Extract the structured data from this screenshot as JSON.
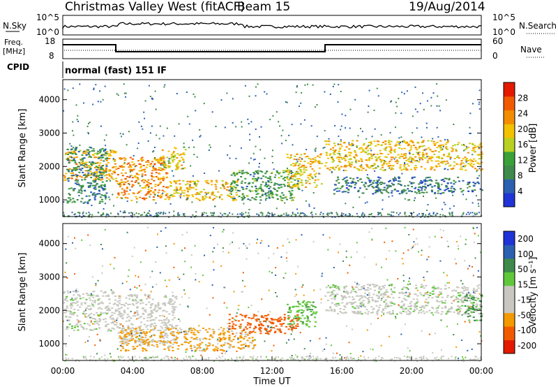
{
  "header": {
    "site": "Christmas Valley West (fitACF)",
    "beam": "Beam 15",
    "date": "19/Aug/2014"
  },
  "noise_panel": {
    "left_label": "N.Sky",
    "right_label": "N.Search",
    "left_ticks": [
      "10^5",
      "10^0"
    ],
    "right_ticks": [
      "10^5",
      "10^0"
    ]
  },
  "freq_panel": {
    "left_label_line1": "Freq.",
    "left_label_line2": "[MHz]",
    "right_label": "Nave",
    "left_ticks": [
      "18",
      "8"
    ],
    "right_ticks": [
      "60",
      "0"
    ]
  },
  "cpid": {
    "label": "CPID",
    "value": "normal (fast) 151 IF"
  },
  "colors": {
    "power": [
      "#1f33d6",
      "#2b5fb0",
      "#3f8a4a",
      "#3aa03a",
      "#b8d020",
      "#f2c100",
      "#f28c00",
      "#f25a00",
      "#e31a00"
    ],
    "velocity": [
      "#e31a00",
      "#f25a00",
      "#f29a00",
      "#c8c8c0",
      "#c8c8c0",
      "#5fc83a",
      "#3f8a4a",
      "#2b5fb0",
      "#1f33d6"
    ]
  },
  "chart_data": [
    {
      "type": "heatmap",
      "name": "power",
      "ylabel": "Slant Range [km]",
      "yticks": [
        "1000",
        "2000",
        "3000",
        "4000"
      ],
      "ylim": [
        500,
        4600
      ],
      "xlim": [
        0,
        24
      ],
      "colorbar_label": "Power [dB]",
      "colorbar_ticks": [
        "4",
        "8",
        "12",
        "16",
        "20",
        "24",
        "28"
      ],
      "colorbar_range": [
        0,
        32
      ],
      "regions": [
        {
          "t0": 0.0,
          "t1": 3.0,
          "r0": 1600,
          "r1": 2500,
          "level": 22
        },
        {
          "t0": 0.2,
          "t1": 2.5,
          "r0": 900,
          "r1": 2600,
          "level": 8
        },
        {
          "t0": 3.0,
          "t1": 6.0,
          "r0": 1000,
          "r1": 2300,
          "level": 24
        },
        {
          "t0": 5.5,
          "t1": 7.0,
          "r0": 1900,
          "r1": 2600,
          "level": 18
        },
        {
          "t0": 6.0,
          "t1": 10.0,
          "r0": 1000,
          "r1": 1600,
          "level": 20
        },
        {
          "t0": 9.5,
          "t1": 13.5,
          "r0": 1000,
          "r1": 1900,
          "level": 10
        },
        {
          "t0": 12.8,
          "t1": 14.8,
          "r0": 1400,
          "r1": 2400,
          "level": 20
        },
        {
          "t0": 15.0,
          "t1": 24.0,
          "r0": 1900,
          "r1": 2800,
          "level": 20
        },
        {
          "t0": 15.5,
          "t1": 24.0,
          "r0": 1200,
          "r1": 1700,
          "level": 6
        }
      ]
    },
    {
      "type": "heatmap",
      "name": "velocity",
      "ylabel": "Slant Range [km]",
      "yticks": [
        "1000",
        "2000",
        "3000",
        "4000"
      ],
      "ylim": [
        500,
        4600
      ],
      "xlabel": "Time UT",
      "xticks": [
        "00:00",
        "04:00",
        "08:00",
        "12:00",
        "16:00",
        "20:00",
        "00:00"
      ],
      "xlim": [
        0,
        24
      ],
      "colorbar_label": "Velocity [m s⁻¹]",
      "colorbar_ticks": [
        "200",
        "100",
        "50",
        "15",
        "-15",
        "-50",
        "-100",
        "-200"
      ],
      "regions": [
        {
          "t0": 0.0,
          "t1": 3.0,
          "r0": 1400,
          "r1": 2600,
          "velocity": 0
        },
        {
          "t0": 3.0,
          "t1": 6.5,
          "r0": 1000,
          "r1": 2500,
          "velocity": -5
        },
        {
          "t0": 3.2,
          "t1": 11.0,
          "r0": 800,
          "r1": 1500,
          "velocity": -60
        },
        {
          "t0": 9.5,
          "t1": 13.5,
          "r0": 1300,
          "r1": 1900,
          "velocity": -150
        },
        {
          "t0": 12.8,
          "t1": 14.5,
          "r0": 1500,
          "r1": 2300,
          "velocity": 40
        },
        {
          "t0": 15.0,
          "t1": 24.0,
          "r0": 1900,
          "r1": 2800,
          "velocity": 0
        },
        {
          "t0": 23.0,
          "t1": 24.0,
          "r0": 1700,
          "r1": 2500,
          "velocity": 60
        }
      ]
    }
  ]
}
